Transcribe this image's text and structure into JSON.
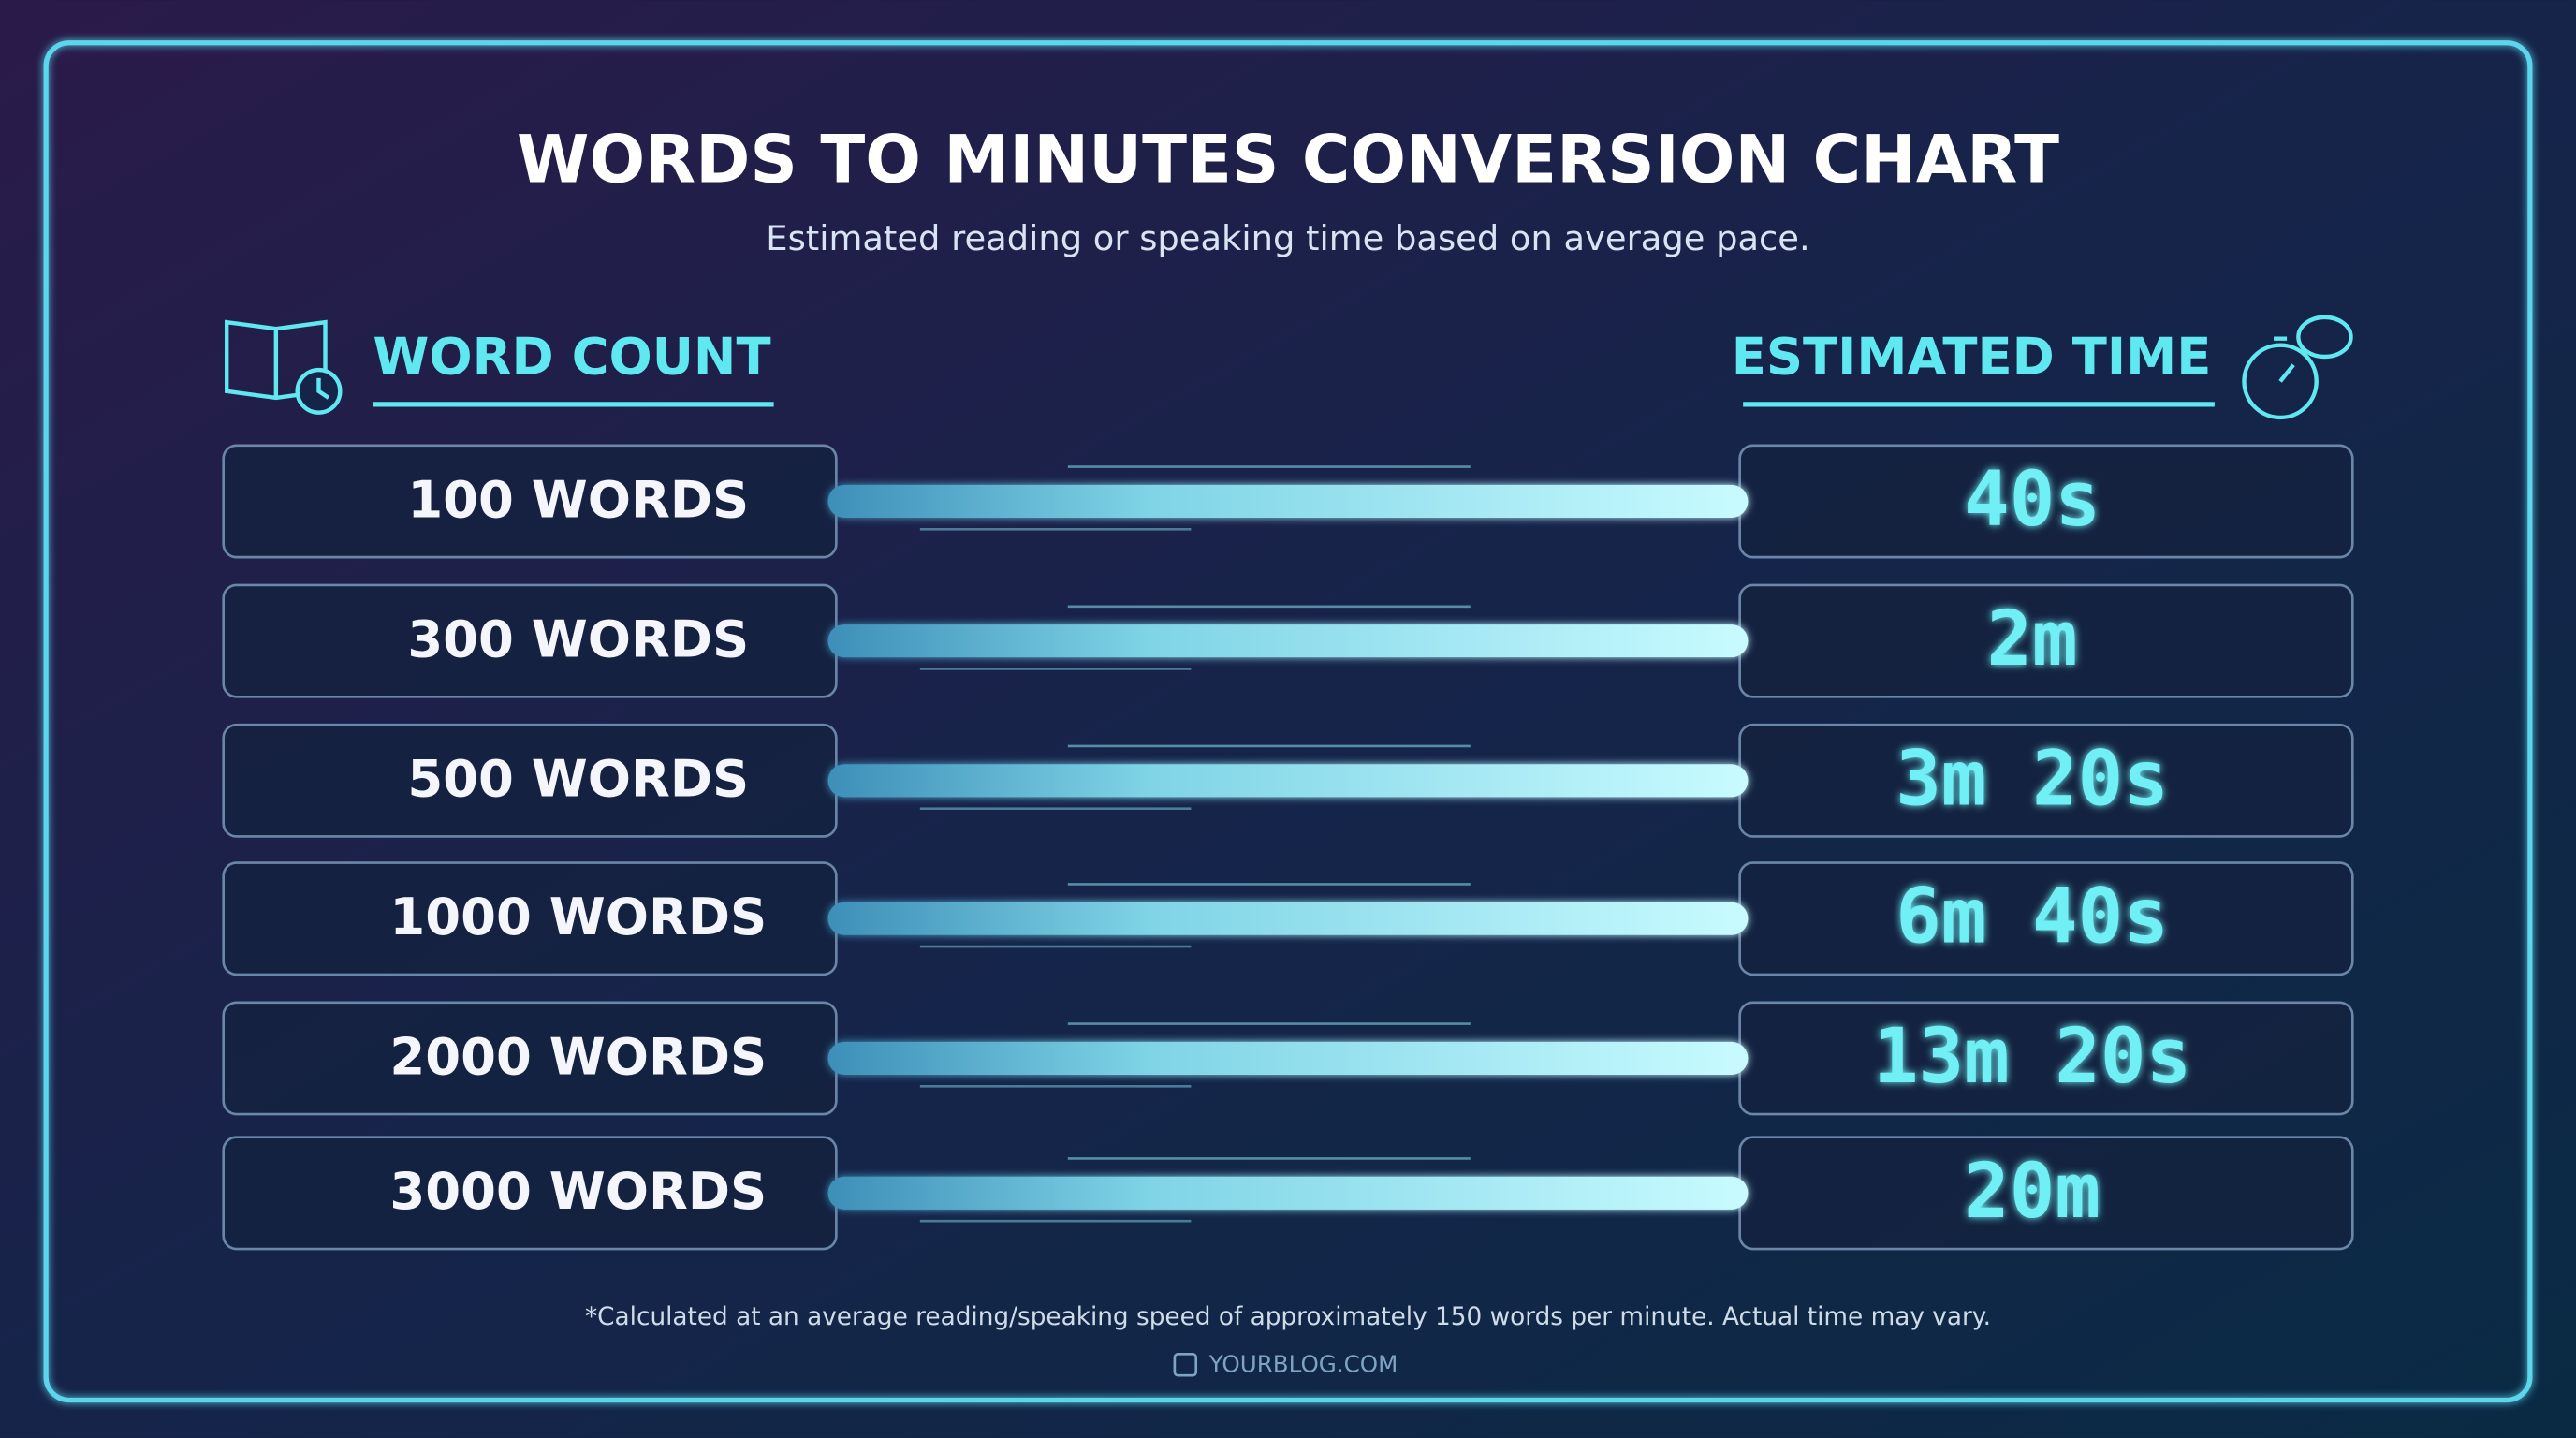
{
  "header": {
    "title": "WORDS TO MINUTES CONVERSION CHART",
    "subtitle": "Estimated reading or speaking time based on average pace."
  },
  "table": {
    "columns": [
      "WORD COUNT",
      "ESTIMATED TIME"
    ],
    "rows": [
      [
        "100 WORDS",
        "40s"
      ],
      [
        "300 WORDS",
        "2m"
      ],
      [
        "500 WORDS",
        "3m 20s"
      ],
      [
        "1000 WORDS",
        "6m 40s"
      ],
      [
        "2000 WORDS",
        "13m 20s"
      ],
      [
        "3000 WORDS",
        "20m"
      ]
    ]
  },
  "footer": {
    "note": "*Calculated at an average reading/speaking speed of approximately 150 words per minute. Actual time may vary.",
    "site": "YOURBLOG.COM"
  }
}
